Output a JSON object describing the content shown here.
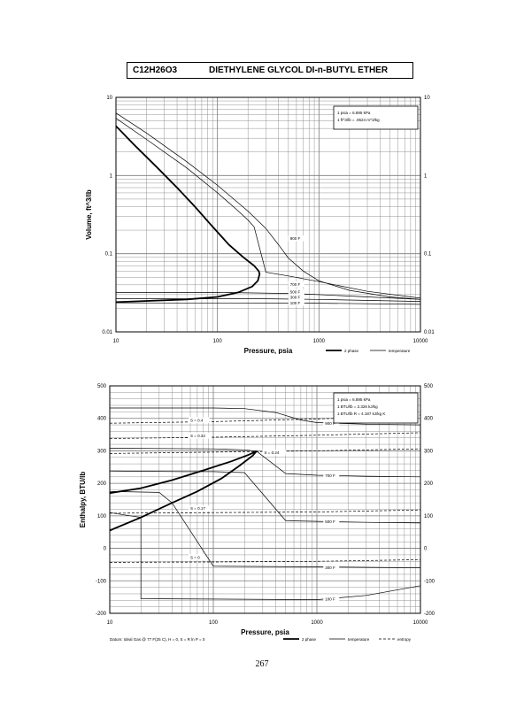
{
  "header": {
    "formula": "C12H26O3",
    "name": "DIETHYLENE GLYCOL DI-n-BUTYL ETHER"
  },
  "page_number": "267",
  "footnote": "Datum: Ideal Gas @ 77 F(25 C), H = 0, S = R ln P = 0",
  "legend": {
    "two_phase": "2 phase",
    "temperature": "temperature",
    "entropy": "entropy"
  },
  "colors": {
    "ink": "#000000",
    "grid": "#7a7a7a",
    "background": "#ffffff"
  },
  "chart_data": [
    {
      "type": "line",
      "xscale": "log",
      "yscale": "log",
      "xlim": [
        10,
        10000
      ],
      "ylim": [
        0.01,
        10
      ],
      "xlabel": "Pressure, psia",
      "ylabel": "Volume, ft^3/lb",
      "x_ticks": [
        "10",
        "100",
        "1000",
        "10000"
      ],
      "y_ticks": [
        "0.01",
        "0.1",
        "1",
        "10"
      ],
      "grid": true,
      "legend_position": "bottom-right",
      "conversions": [
        "1 psia = 6.895 kPa",
        "1 ft^3/lb = .0624 m^3/kg"
      ],
      "series": [
        {
          "kind": "two_phase",
          "points": [
            [
              10,
              4.3
            ],
            [
              15,
              2.5
            ],
            [
              25,
              1.3
            ],
            [
              40,
              0.7
            ],
            [
              60,
              0.4
            ],
            [
              90,
              0.22
            ],
            [
              130,
              0.13
            ],
            [
              180,
              0.09
            ],
            [
              230,
              0.07
            ],
            [
              255,
              0.06
            ],
            [
              260,
              0.055
            ],
            [
              250,
              0.045
            ],
            [
              220,
              0.038
            ],
            [
              160,
              0.032
            ],
            [
              100,
              0.028
            ],
            [
              50,
              0.026
            ],
            [
              10,
              0.024
            ]
          ]
        },
        {
          "kind": "temperature",
          "label": "900 F",
          "points": [
            [
              10,
              6.3
            ],
            [
              20,
              3.5
            ],
            [
              50,
              1.5
            ],
            [
              100,
              0.75
            ],
            [
              200,
              0.35
            ],
            [
              300,
              0.21
            ],
            [
              400,
              0.13
            ],
            [
              500,
              0.088
            ],
            [
              700,
              0.06
            ],
            [
              1000,
              0.045
            ],
            [
              2000,
              0.034
            ],
            [
              5000,
              0.028
            ],
            [
              10000,
              0.026
            ]
          ]
        },
        {
          "kind": "temperature",
          "label": "700 F",
          "points": [
            [
              10,
              5.4
            ],
            [
              20,
              2.9
            ],
            [
              50,
              1.25
            ],
            [
              100,
              0.6
            ],
            [
              150,
              0.38
            ],
            [
              200,
              0.27
            ],
            [
              230,
              0.22
            ],
            [
              300,
              0.058
            ],
            [
              500,
              0.052
            ],
            [
              1000,
              0.044
            ],
            [
              3000,
              0.033
            ],
            [
              10000,
              0.027
            ]
          ]
        },
        {
          "kind": "temperature",
          "label": "500 F",
          "points": [
            [
              10,
              0.032
            ],
            [
              100,
              0.032
            ],
            [
              500,
              0.031
            ],
            [
              1000,
              0.03
            ],
            [
              3000,
              0.028
            ],
            [
              10000,
              0.026
            ]
          ]
        },
        {
          "kind": "temperature",
          "label": "300 F",
          "points": [
            [
              10,
              0.0265
            ],
            [
              300,
              0.0265
            ],
            [
              1000,
              0.026
            ],
            [
              10000,
              0.0245
            ]
          ]
        },
        {
          "kind": "temperature",
          "label": "100 F",
          "points": [
            [
              10,
              0.0235
            ],
            [
              1000,
              0.0233
            ],
            [
              10000,
              0.0225
            ]
          ]
        }
      ],
      "labels": [
        {
          "text": "900 F",
          "x": 520,
          "y": 0.15
        },
        {
          "text": "700 F",
          "x": 520,
          "y": 0.039
        },
        {
          "text": "500 F",
          "x": 520,
          "y": 0.031
        },
        {
          "text": "300 F",
          "x": 520,
          "y": 0.0265
        },
        {
          "text": "100 F",
          "x": 520,
          "y": 0.0225
        }
      ]
    },
    {
      "type": "line",
      "xscale": "log",
      "yscale": "linear",
      "xlim": [
        10,
        10000
      ],
      "ylim": [
        -200,
        500
      ],
      "xlabel": "Pressure, psia",
      "ylabel": "Enthalpy, BTU/lb",
      "x_ticks": [
        "10",
        "100",
        "1000",
        "10000"
      ],
      "y_ticks": [
        "-200",
        "-100",
        "0",
        "100",
        "200",
        "300",
        "400",
        "500"
      ],
      "grid": true,
      "legend_position": "bottom-right",
      "conversions": [
        "1 psia = 6.895 kPa",
        "1 BTU/lb = 2.326 kJ/kg",
        "1 BTU/lb R = 4.187 kJ/kg K"
      ],
      "series": [
        {
          "kind": "two_phase",
          "points": [
            [
              10,
              170
            ],
            [
              20,
              185
            ],
            [
              40,
              210
            ],
            [
              80,
              240
            ],
            [
              150,
              268
            ],
            [
              220,
              288
            ],
            [
              262,
              299
            ],
            [
              240,
              285
            ],
            [
              180,
              255
            ],
            [
              120,
              215
            ],
            [
              70,
              175
            ],
            [
              40,
              140
            ],
            [
              20,
              95
            ],
            [
              10,
              55
            ]
          ]
        },
        {
          "kind": "temperature",
          "label": "900 F",
          "points": [
            [
              10,
              432
            ],
            [
              100,
              432
            ],
            [
              200,
              430
            ],
            [
              400,
              418
            ],
            [
              700,
              395
            ],
            [
              1000,
              387
            ],
            [
              3000,
              382
            ],
            [
              10000,
              380
            ]
          ]
        },
        {
          "kind": "temperature",
          "label": "700 F",
          "points": [
            [
              10,
              308
            ],
            [
              100,
              306
            ],
            [
              200,
              303
            ],
            [
              262,
              299
            ],
            [
              500,
              230
            ],
            [
              1000,
              225
            ],
            [
              3000,
              222
            ],
            [
              10000,
              220
            ]
          ]
        },
        {
          "kind": "temperature",
          "label": "500 F",
          "points": [
            [
              10,
              238
            ],
            [
              50,
              236
            ],
            [
              100,
              236
            ],
            [
              200,
              233
            ],
            [
              500,
              85
            ],
            [
              1000,
              83
            ],
            [
              3000,
              80
            ],
            [
              10000,
              78
            ]
          ]
        },
        {
          "kind": "temperature",
          "label": "300 F",
          "points": [
            [
              10,
              175
            ],
            [
              30,
              172
            ],
            [
              40,
              140
            ],
            [
              100,
              -55
            ],
            [
              1000,
              -57
            ],
            [
              10000,
              -60
            ]
          ]
        },
        {
          "kind": "temperature",
          "label": "100 F",
          "points": [
            [
              10,
              110
            ],
            [
              20,
              95
            ],
            [
              20,
              -155
            ],
            [
              1000,
              -158
            ],
            [
              3000,
              -145
            ],
            [
              10000,
              -115
            ]
          ]
        },
        {
          "kind": "entropy",
          "label": "S = 0.4",
          "points": [
            [
              10,
              385
            ],
            [
              100,
              390
            ],
            [
              1000,
              398
            ],
            [
              10000,
              410
            ]
          ]
        },
        {
          "kind": "entropy",
          "label": "S = 0.32",
          "points": [
            [
              10,
              338
            ],
            [
              100,
              342
            ],
            [
              1000,
              348
            ],
            [
              10000,
              356
            ]
          ]
        },
        {
          "kind": "entropy",
          "label": "S = 0.24",
          "points": [
            [
              10,
              292
            ],
            [
              100,
              296
            ],
            [
              1000,
              300
            ],
            [
              10000,
              306
            ]
          ]
        },
        {
          "kind": "entropy",
          "label": "S = 0.17",
          "points": [
            [
              10,
              108
            ],
            [
              100,
              110
            ],
            [
              1000,
              112
            ],
            [
              10000,
              118
            ]
          ]
        },
        {
          "kind": "entropy",
          "label": "S = 0",
          "points": [
            [
              10,
              -43
            ],
            [
              100,
              -42
            ],
            [
              1000,
              -40
            ],
            [
              10000,
              -35
            ]
          ]
        }
      ],
      "labels": [
        {
          "text": "S = 0.4",
          "x": 60,
          "y": 390
        },
        {
          "text": "S = 0.32",
          "x": 60,
          "y": 342
        },
        {
          "text": "S = 0.24",
          "x": 310,
          "y": 290
        },
        {
          "text": "S = 0.17",
          "x": 60,
          "y": 118
        },
        {
          "text": "S = 0",
          "x": 60,
          "y": -32
        },
        {
          "text": "900 F",
          "x": 1200,
          "y": 380
        },
        {
          "text": "700 F",
          "x": 1200,
          "y": 220
        },
        {
          "text": "500 F",
          "x": 1200,
          "y": 78
        },
        {
          "text": "300 F",
          "x": 1200,
          "y": -64
        },
        {
          "text": "100 F",
          "x": 1200,
          "y": -160
        }
      ]
    }
  ]
}
